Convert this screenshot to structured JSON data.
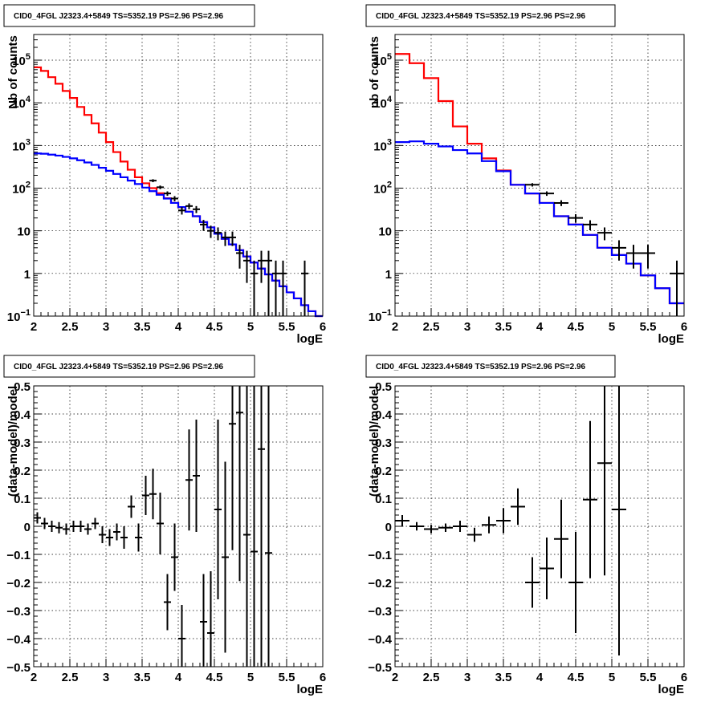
{
  "chart_data": [
    {
      "type": "step",
      "title": "CID0_4FGL J2323.4+5849 TS=5352.19 PS=2.96 PS=2.96",
      "xlabel": "logE",
      "ylabel": "Nb of counts",
      "xlim": [
        2,
        6
      ],
      "ylim": [
        0.1,
        400000
      ],
      "yscale": "log",
      "grid": true,
      "xticks": [
        "2",
        "2.5",
        "3",
        "3.5",
        "4",
        "4.5",
        "5",
        "5.5",
        "6"
      ],
      "yticks": [
        {
          "value": 0.1,
          "base": "10",
          "exp": "−1"
        },
        {
          "value": 1,
          "label": "1"
        },
        {
          "value": 10,
          "label": "10"
        },
        {
          "value": 100,
          "base": "10",
          "exp": "2"
        },
        {
          "value": 1000,
          "base": "10",
          "exp": "3"
        },
        {
          "value": 10000,
          "base": "10",
          "exp": "4"
        },
        {
          "value": 100000,
          "base": "10",
          "exp": "5"
        }
      ],
      "bin_edges": [
        2.0,
        2.1,
        2.2,
        2.3,
        2.4,
        2.5,
        2.6,
        2.7,
        2.8,
        2.9,
        3.0,
        3.1,
        3.2,
        3.3,
        3.4,
        3.5,
        3.6,
        3.7,
        3.8,
        3.9,
        4.0,
        4.1,
        4.2,
        4.3,
        4.4,
        4.5,
        4.6,
        4.7,
        4.8,
        4.9,
        5.0,
        5.1,
        5.2,
        5.3,
        5.4,
        5.5,
        5.6,
        5.7,
        5.8,
        5.9,
        6.0
      ],
      "series": [
        {
          "color": "#ff0000",
          "values": [
            68000,
            56000,
            40000,
            28000,
            19000,
            13000,
            8000,
            5200,
            3300,
            2000,
            1200,
            700,
            420,
            270,
            180,
            130,
            100,
            76,
            58,
            45,
            36,
            28,
            22,
            16,
            12,
            8.5,
            6.5,
            4.8,
            3.5,
            2.5,
            1.8,
            1.3,
            0.95,
            0.68,
            0.5,
            0.36,
            0.26,
            0.18,
            0.13,
            0.09
          ]
        },
        {
          "color": "#0000ff",
          "values": [
            650,
            640,
            610,
            580,
            540,
            500,
            450,
            400,
            350,
            300,
            255,
            215,
            180,
            150,
            125,
            103,
            85,
            70,
            57,
            45,
            36,
            28,
            22,
            16,
            12,
            8.5,
            6.5,
            4.8,
            3.5,
            2.5,
            1.8,
            1.3,
            0.95,
            0.68,
            0.5,
            0.36,
            0.26,
            0.18,
            0.13,
            0.09
          ]
        }
      ],
      "points": [
        {
          "x": 3.65,
          "y": 150,
          "xerr": 0.05,
          "yerr": [
            12,
            12
          ]
        },
        {
          "x": 3.75,
          "y": 105,
          "xerr": 0.05,
          "yerr": [
            10,
            10
          ]
        },
        {
          "x": 3.85,
          "y": 75,
          "xerr": 0.05,
          "yerr": [
            9,
            9
          ]
        },
        {
          "x": 3.95,
          "y": 57,
          "xerr": 0.05,
          "yerr": [
            8,
            8
          ]
        },
        {
          "x": 4.05,
          "y": 30,
          "xerr": 0.05,
          "yerr": [
            6,
            6
          ]
        },
        {
          "x": 4.15,
          "y": 38,
          "xerr": 0.05,
          "yerr": [
            6,
            6
          ]
        },
        {
          "x": 4.25,
          "y": 32,
          "xerr": 0.05,
          "yerr": [
            6,
            6
          ]
        },
        {
          "x": 4.35,
          "y": 14,
          "xerr": 0.05,
          "yerr": [
            4,
            4
          ]
        },
        {
          "x": 4.45,
          "y": 10,
          "xerr": 0.05,
          "yerr": [
            3.2,
            3.2
          ]
        },
        {
          "x": 4.55,
          "y": 9,
          "xerr": 0.05,
          "yerr": [
            3,
            3
          ]
        },
        {
          "x": 4.65,
          "y": 7,
          "xerr": 0.05,
          "yerr": [
            2.6,
            2.6
          ]
        },
        {
          "x": 4.75,
          "y": 7,
          "xerr": 0.05,
          "yerr": [
            2.6,
            2.6
          ]
        },
        {
          "x": 4.85,
          "y": 3,
          "xerr": 0.05,
          "yerr": [
            1.7,
            1.7
          ]
        },
        {
          "x": 4.95,
          "y": 2,
          "xerr": 0.05,
          "yerr": [
            1.4,
            1.4
          ]
        },
        {
          "x": 5.05,
          "y": 1,
          "xerr": 0.05,
          "yerr": [
            0.9,
            1
          ]
        },
        {
          "x": 5.15,
          "y": 2,
          "xerr": 0.05,
          "yerr": [
            1.4,
            1.4
          ]
        },
        {
          "x": 5.25,
          "y": 2,
          "xerr": 0.05,
          "yerr": [
            1.9,
            1.4
          ]
        },
        {
          "x": 5.35,
          "y": 1,
          "xerr": 0.05,
          "yerr": [
            0.9,
            1
          ]
        },
        {
          "x": 5.45,
          "y": 1,
          "xerr": 0.05,
          "yerr": [
            0.9,
            1
          ]
        },
        {
          "x": 5.75,
          "y": 1,
          "xerr": 0.05,
          "yerr": [
            0.9,
            1
          ]
        }
      ]
    },
    {
      "type": "step",
      "title": "CID0_4FGL J2323.4+5849 TS=5352.19 PS=2.96 PS=2.96",
      "xlabel": "logE",
      "ylabel": "nb of counts",
      "xlim": [
        2,
        6
      ],
      "ylim": [
        0.1,
        400000
      ],
      "yscale": "log",
      "grid": true,
      "xticks": [
        "2",
        "2.5",
        "3",
        "3.5",
        "4",
        "4.5",
        "5",
        "5.5",
        "6"
      ],
      "yticks": [
        {
          "value": 0.1,
          "base": "10",
          "exp": "−1"
        },
        {
          "value": 1,
          "label": "1"
        },
        {
          "value": 10,
          "label": "10"
        },
        {
          "value": 100,
          "base": "10",
          "exp": "2"
        },
        {
          "value": 1000,
          "base": "10",
          "exp": "3"
        },
        {
          "value": 10000,
          "base": "10",
          "exp": "4"
        },
        {
          "value": 100000,
          "base": "10",
          "exp": "5"
        }
      ],
      "bin_edges": [
        2.0,
        2.2,
        2.4,
        2.6,
        2.8,
        3.0,
        3.2,
        3.4,
        3.6,
        3.8,
        4.0,
        4.2,
        4.4,
        4.6,
        4.8,
        5.0,
        5.2,
        5.4,
        5.6,
        5.8,
        6.0
      ],
      "series": [
        {
          "color": "#ff0000",
          "values": [
            140000,
            85000,
            38000,
            11000,
            2800,
            1100,
            500,
            260,
            120,
            75,
            45,
            22,
            14,
            8,
            4,
            2.7,
            1.7,
            0.9,
            0.45,
            0.2
          ]
        },
        {
          "color": "#0000ff",
          "values": [
            1200,
            1250,
            1100,
            950,
            780,
            650,
            430,
            250,
            120,
            75,
            45,
            22,
            14,
            8,
            4,
            2.7,
            1.7,
            0.9,
            0.45,
            0.2
          ]
        }
      ],
      "points": [
        {
          "x": 3.9,
          "y": 120,
          "xerr": 0.1,
          "yerr": [
            11,
            11
          ]
        },
        {
          "x": 4.1,
          "y": 75,
          "xerr": 0.1,
          "yerr": [
            9,
            9
          ]
        },
        {
          "x": 4.3,
          "y": 45,
          "xerr": 0.1,
          "yerr": [
            7,
            7
          ]
        },
        {
          "x": 4.5,
          "y": 20,
          "xerr": 0.1,
          "yerr": [
            4.5,
            4.5
          ]
        },
        {
          "x": 4.7,
          "y": 14,
          "xerr": 0.1,
          "yerr": [
            3.7,
            3.7
          ]
        },
        {
          "x": 4.9,
          "y": 9,
          "xerr": 0.1,
          "yerr": [
            3,
            3
          ]
        },
        {
          "x": 5.1,
          "y": 4,
          "xerr": 0.1,
          "yerr": [
            2,
            2
          ]
        },
        {
          "x": 5.3,
          "y": 3,
          "xerr": 0.1,
          "yerr": [
            1.7,
            1.7
          ]
        },
        {
          "x": 5.5,
          "y": 3,
          "xerr": 0.1,
          "yerr": [
            1.7,
            1.7
          ]
        },
        {
          "x": 5.9,
          "y": 1,
          "xerr": 0.1,
          "yerr": [
            0.9,
            1
          ]
        }
      ]
    },
    {
      "type": "scatter",
      "title": "CID0_4FGL J2323.4+5849 TS=5352.19 PS=2.96 PS=2.96",
      "xlabel": "logE",
      "ylabel": "(data-model)/model",
      "xlim": [
        2,
        6
      ],
      "ylim": [
        -0.5,
        0.5
      ],
      "grid": true,
      "xticks": [
        "2",
        "2.5",
        "3",
        "3.5",
        "4",
        "4.5",
        "5",
        "5.5",
        "6"
      ],
      "yticks": [
        "−0.5",
        "−0.4",
        "−0.3",
        "−0.2",
        "−0.1",
        "0",
        "0.1",
        "0.2",
        "0.3",
        "0.4",
        "0.5"
      ],
      "points": [
        {
          "x": 2.05,
          "y": 0.03,
          "xerr": 0.05,
          "yerr": 0.02
        },
        {
          "x": 2.15,
          "y": 0.01,
          "xerr": 0.05,
          "yerr": 0.02
        },
        {
          "x": 2.25,
          "y": 0.0,
          "xerr": 0.05,
          "yerr": 0.02
        },
        {
          "x": 2.35,
          "y": -0.005,
          "xerr": 0.05,
          "yerr": 0.02
        },
        {
          "x": 2.45,
          "y": -0.01,
          "xerr": 0.05,
          "yerr": 0.02
        },
        {
          "x": 2.55,
          "y": 0.0,
          "xerr": 0.05,
          "yerr": 0.02
        },
        {
          "x": 2.65,
          "y": 0.0,
          "xerr": 0.05,
          "yerr": 0.02
        },
        {
          "x": 2.75,
          "y": -0.01,
          "xerr": 0.05,
          "yerr": 0.02
        },
        {
          "x": 2.85,
          "y": 0.01,
          "xerr": 0.05,
          "yerr": 0.02
        },
        {
          "x": 2.95,
          "y": -0.03,
          "xerr": 0.05,
          "yerr": 0.03
        },
        {
          "x": 3.05,
          "y": -0.04,
          "xerr": 0.05,
          "yerr": 0.03
        },
        {
          "x": 3.15,
          "y": -0.02,
          "xerr": 0.05,
          "yerr": 0.03
        },
        {
          "x": 3.25,
          "y": -0.04,
          "xerr": 0.05,
          "yerr": 0.04
        },
        {
          "x": 3.35,
          "y": 0.07,
          "xerr": 0.05,
          "yerr": 0.04
        },
        {
          "x": 3.45,
          "y": -0.04,
          "xerr": 0.05,
          "yerr": 0.05
        },
        {
          "x": 3.55,
          "y": 0.11,
          "xerr": 0.05,
          "yerr": 0.07
        },
        {
          "x": 3.65,
          "y": 0.115,
          "xerr": 0.05,
          "yerr": 0.09
        },
        {
          "x": 3.75,
          "y": 0.01,
          "xerr": 0.05,
          "yerr": 0.11
        },
        {
          "x": 3.85,
          "y": -0.27,
          "xerr": 0.05,
          "yerr": 0.1
        },
        {
          "x": 3.95,
          "y": -0.11,
          "xerr": 0.05,
          "yerr": 0.12
        },
        {
          "x": 4.05,
          "y": -0.4,
          "xerr": 0.05,
          "yerr": 0.12
        },
        {
          "x": 4.15,
          "y": 0.165,
          "xerr": 0.05,
          "yerr": 0.18
        },
        {
          "x": 4.25,
          "y": 0.18,
          "xerr": 0.05,
          "yerr": 0.2
        },
        {
          "x": 4.35,
          "y": -0.34,
          "xerr": 0.05,
          "yerr": 0.17
        },
        {
          "x": 4.45,
          "y": -0.38,
          "xerr": 0.05,
          "yerr": 0.22
        },
        {
          "x": 4.55,
          "y": 0.06,
          "xerr": 0.05,
          "yerr": 0.32
        },
        {
          "x": 4.65,
          "y": -0.11,
          "xerr": 0.05,
          "yerr": 0.34
        },
        {
          "x": 4.75,
          "y": 0.365,
          "xerr": 0.05,
          "yerr": 0.45
        },
        {
          "x": 4.85,
          "y": 0.405,
          "xerr": 0.05,
          "yerr": 0.6
        },
        {
          "x": 4.95,
          "y": -0.03,
          "xerr": 0.05,
          "yerr": 0.7
        },
        {
          "x": 5.05,
          "y": -0.09,
          "xerr": 0.05,
          "yerr": 0.9
        },
        {
          "x": 5.15,
          "y": 0.275,
          "xerr": 0.05,
          "yerr": 0.95
        },
        {
          "x": 5.25,
          "y": -0.095,
          "xerr": 0.05,
          "yerr": 1.0
        }
      ]
    },
    {
      "type": "scatter",
      "title": "CID0_4FGL J2323.4+5849 TS=5352.19 PS=2.96 PS=2.96",
      "xlabel": "logE",
      "ylabel": "(data-model)/model",
      "xlim": [
        2,
        6
      ],
      "ylim": [
        -0.5,
        0.5
      ],
      "grid": true,
      "xticks": [
        "2",
        "2.5",
        "3",
        "3.5",
        "4",
        "4.5",
        "5",
        "5.5",
        "6"
      ],
      "yticks": [
        "−0.5",
        "−0.4",
        "−0.3",
        "−0.2",
        "−0.1",
        "0",
        "0.1",
        "0.2",
        "0.3",
        "0.4",
        "0.5"
      ],
      "points": [
        {
          "x": 2.1,
          "y": 0.02,
          "xerr": 0.1,
          "yerr": 0.02
        },
        {
          "x": 2.3,
          "y": 0.0,
          "xerr": 0.1,
          "yerr": 0.015
        },
        {
          "x": 2.5,
          "y": -0.01,
          "xerr": 0.1,
          "yerr": 0.015
        },
        {
          "x": 2.7,
          "y": -0.005,
          "xerr": 0.1,
          "yerr": 0.015
        },
        {
          "x": 2.9,
          "y": 0.0,
          "xerr": 0.1,
          "yerr": 0.02
        },
        {
          "x": 3.1,
          "y": -0.03,
          "xerr": 0.1,
          "yerr": 0.025
        },
        {
          "x": 3.3,
          "y": 0.005,
          "xerr": 0.1,
          "yerr": 0.03
        },
        {
          "x": 3.5,
          "y": 0.02,
          "xerr": 0.1,
          "yerr": 0.045
        },
        {
          "x": 3.7,
          "y": 0.07,
          "xerr": 0.1,
          "yerr": 0.065
        },
        {
          "x": 3.9,
          "y": -0.2,
          "xerr": 0.1,
          "yerr": 0.09
        },
        {
          "x": 4.1,
          "y": -0.15,
          "xerr": 0.1,
          "yerr": 0.11
        },
        {
          "x": 4.3,
          "y": -0.045,
          "xerr": 0.1,
          "yerr": 0.14
        },
        {
          "x": 4.5,
          "y": -0.2,
          "xerr": 0.1,
          "yerr": 0.18
        },
        {
          "x": 4.7,
          "y": 0.095,
          "xerr": 0.1,
          "yerr": 0.28
        },
        {
          "x": 4.9,
          "y": 0.225,
          "xerr": 0.1,
          "yerr": 0.4
        },
        {
          "x": 5.1,
          "y": 0.06,
          "xerr": 0.1,
          "yerr": 0.52
        }
      ]
    }
  ]
}
